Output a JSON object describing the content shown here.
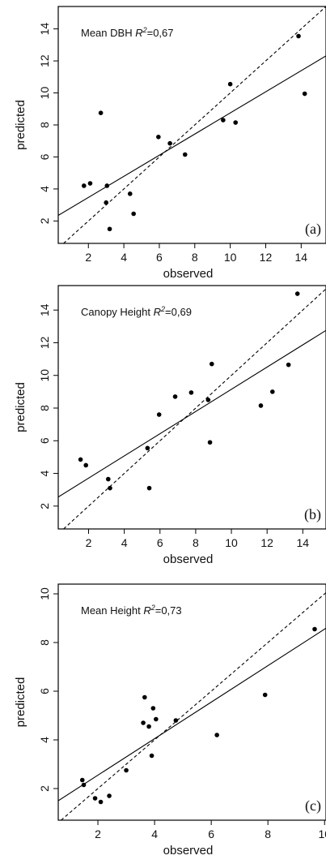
{
  "chart_data": [
    {
      "type": "scatter",
      "panel_label": "(a)",
      "annotation_name": "Mean DBH",
      "annotation_r2_label": "R",
      "annotation_r2_sup": "2",
      "annotation_r2_value": "=0,67",
      "xlabel": "observed",
      "ylabel": "predicted",
      "xlim": [
        0.3,
        15.4
      ],
      "ylim": [
        0.6,
        15.4
      ],
      "xticks": [
        2,
        4,
        6,
        8,
        10,
        12,
        14
      ],
      "xtick_labels": [
        "2",
        "4",
        "6",
        "8",
        "10",
        "12",
        "14"
      ],
      "yticks": [
        2,
        4,
        6,
        8,
        10,
        12,
        14
      ],
      "ytick_labels": [
        "2",
        "4",
        "6",
        "8",
        "10",
        "12",
        "14"
      ],
      "points": [
        [
          1.75,
          4.2
        ],
        [
          2.1,
          4.35
        ],
        [
          2.7,
          8.75
        ],
        [
          3.0,
          3.15
        ],
        [
          3.05,
          4.2
        ],
        [
          3.2,
          1.5
        ],
        [
          4.35,
          3.7
        ],
        [
          4.55,
          2.45
        ],
        [
          5.95,
          7.25
        ],
        [
          6.6,
          6.85
        ],
        [
          7.45,
          6.15
        ],
        [
          9.6,
          8.3
        ],
        [
          10.0,
          10.55
        ],
        [
          10.3,
          8.15
        ],
        [
          13.85,
          13.55
        ],
        [
          14.2,
          9.95
        ]
      ],
      "fit_line": {
        "intercept": 2.15,
        "slope": 0.66
      },
      "one_to_one_line": true
    },
    {
      "type": "scatter",
      "panel_label": "(b)",
      "annotation_name": "Canopy Height",
      "annotation_r2_label": "R",
      "annotation_r2_sup": "2",
      "annotation_r2_value": "=0,69",
      "xlabel": "observed",
      "ylabel": "predicted",
      "xlim": [
        0.3,
        15.3
      ],
      "ylim": [
        0.6,
        15.5
      ],
      "xticks": [
        2,
        4,
        6,
        8,
        10,
        12,
        14
      ],
      "xtick_labels": [
        "2",
        "4",
        "6",
        "8",
        "10",
        "12",
        "14"
      ],
      "yticks": [
        2,
        4,
        6,
        8,
        10,
        12,
        14
      ],
      "ytick_labels": [
        "2",
        "4",
        "6",
        "8",
        "10",
        "12",
        "14"
      ],
      "points": [
        [
          1.55,
          4.85
        ],
        [
          1.85,
          4.5
        ],
        [
          3.1,
          3.65
        ],
        [
          3.2,
          3.1
        ],
        [
          5.3,
          5.55
        ],
        [
          5.4,
          3.1
        ],
        [
          5.95,
          7.6
        ],
        [
          6.85,
          8.7
        ],
        [
          7.75,
          8.95
        ],
        [
          8.7,
          8.5
        ],
        [
          8.8,
          5.9
        ],
        [
          8.9,
          10.7
        ],
        [
          11.65,
          8.15
        ],
        [
          12.3,
          9.0
        ],
        [
          13.2,
          10.65
        ],
        [
          13.7,
          15.0
        ]
      ],
      "fit_line": {
        "intercept": 2.35,
        "slope": 0.68
      },
      "one_to_one_line": true
    },
    {
      "type": "scatter",
      "panel_label": "(c)",
      "annotation_name": "Mean Height",
      "annotation_r2_label": "R",
      "annotation_r2_sup": "2",
      "annotation_r2_value": "=0,73",
      "xlabel": "observed",
      "ylabel": "predicted",
      "xlim": [
        0.6,
        10.05
      ],
      "ylim": [
        0.7,
        10.4
      ],
      "xticks": [
        2,
        4,
        6,
        8,
        10
      ],
      "xtick_labels": [
        "2",
        "4",
        "6",
        "8",
        "10"
      ],
      "yticks": [
        2,
        4,
        6,
        8,
        10
      ],
      "ytick_labels": [
        "2",
        "4",
        "6",
        "8",
        "10"
      ],
      "points": [
        [
          1.45,
          2.35
        ],
        [
          1.5,
          2.15
        ],
        [
          1.9,
          1.6
        ],
        [
          2.1,
          1.45
        ],
        [
          2.4,
          1.7
        ],
        [
          3.0,
          2.75
        ],
        [
          3.6,
          4.7
        ],
        [
          3.65,
          5.75
        ],
        [
          3.8,
          4.55
        ],
        [
          3.9,
          3.35
        ],
        [
          3.95,
          5.3
        ],
        [
          4.05,
          4.85
        ],
        [
          4.75,
          4.8
        ],
        [
          6.2,
          4.2
        ],
        [
          7.9,
          5.85
        ],
        [
          9.65,
          8.55
        ]
      ],
      "fit_line": {
        "intercept": 1.05,
        "slope": 0.75
      },
      "one_to_one_line": true
    }
  ]
}
